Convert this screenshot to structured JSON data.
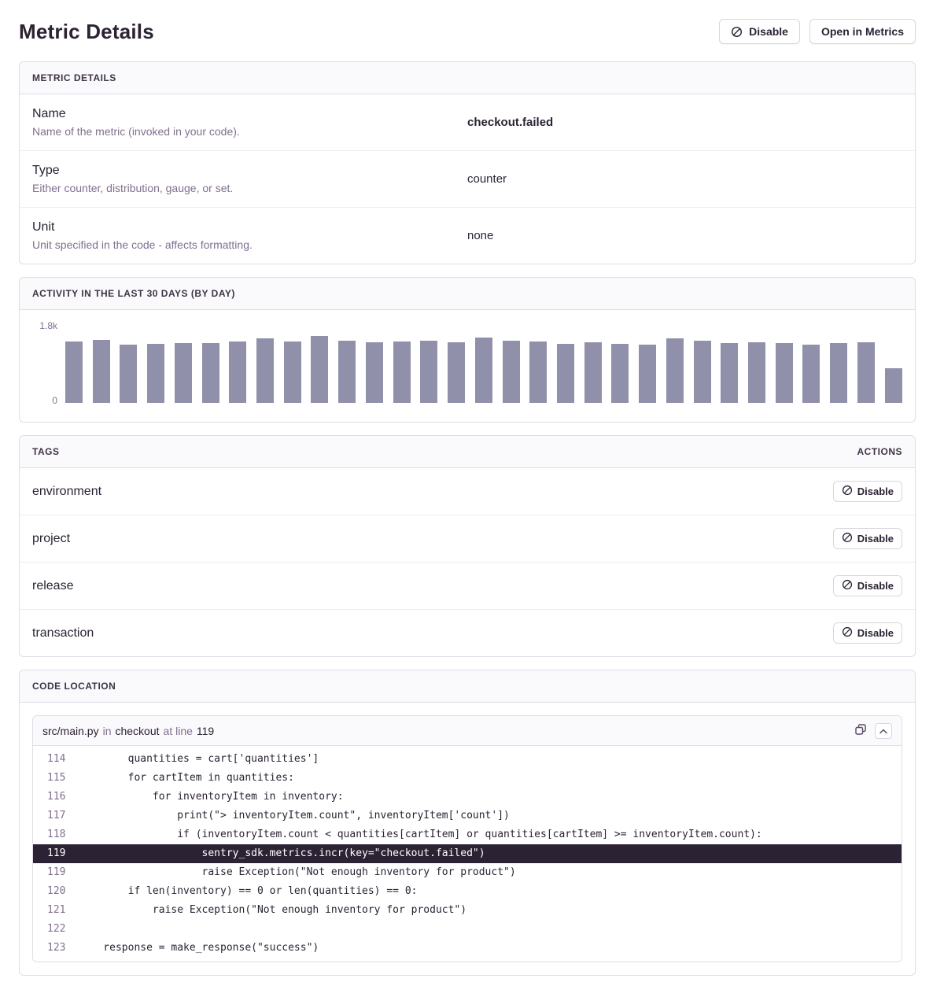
{
  "page": {
    "title": "Metric Details"
  },
  "header_actions": {
    "disable_label": "Disable",
    "open_in_metrics_label": "Open in Metrics"
  },
  "metric_details": {
    "section_title": "METRIC DETAILS",
    "rows": [
      {
        "label": "Name",
        "description": "Name of the metric (invoked in your code).",
        "value": "checkout.failed",
        "value_bold": true
      },
      {
        "label": "Type",
        "description": "Either counter, distribution, gauge, or set.",
        "value": "counter",
        "value_bold": false
      },
      {
        "label": "Unit",
        "description": "Unit specified in the code - affects formatting.",
        "value": "none",
        "value_bold": false
      }
    ]
  },
  "activity": {
    "section_title": "ACTIVITY IN THE LAST 30 DAYS (BY DAY)",
    "y_max_label": "1.8k",
    "y_min_label": "0"
  },
  "chart_data": {
    "type": "bar",
    "title": "Activity in the last 30 days (by day)",
    "ylim": [
      0,
      1800
    ],
    "ytick_labels": [
      "0",
      "1.8k"
    ],
    "grid": false,
    "legend": false,
    "bar_color": "#9190aa",
    "values": [
      1520,
      1560,
      1450,
      1470,
      1480,
      1490,
      1520,
      1600,
      1530,
      1660,
      1550,
      1500,
      1530,
      1550,
      1510,
      1620,
      1540,
      1520,
      1470,
      1510,
      1460,
      1440,
      1600,
      1540,
      1480,
      1500,
      1490,
      1450,
      1480,
      1500,
      870
    ]
  },
  "tags": {
    "section_title": "TAGS",
    "actions_title": "ACTIONS",
    "disable_label": "Disable",
    "items": [
      {
        "name": "environment"
      },
      {
        "name": "project"
      },
      {
        "name": "release"
      },
      {
        "name": "transaction"
      }
    ]
  },
  "code_location": {
    "section_title": "CODE LOCATION",
    "file_path": "src/main.py",
    "in_word": "in",
    "function_name": "checkout",
    "at_line_words": "at line",
    "line_number": "119",
    "lines": [
      {
        "num": "114",
        "code": "        quantities = cart['quantities']",
        "highlight": false
      },
      {
        "num": "115",
        "code": "        for cartItem in quantities:",
        "highlight": false
      },
      {
        "num": "116",
        "code": "            for inventoryItem in inventory:",
        "highlight": false
      },
      {
        "num": "117",
        "code": "                print(\"> inventoryItem.count\", inventoryItem['count'])",
        "highlight": false
      },
      {
        "num": "118",
        "code": "                if (inventoryItem.count < quantities[cartItem] or quantities[cartItem] >= inventoryItem.count):",
        "highlight": false
      },
      {
        "num": "119",
        "code": "                    sentry_sdk.metrics.incr(key=\"checkout.failed\")",
        "highlight": true
      },
      {
        "num": "119",
        "code": "                    raise Exception(\"Not enough inventory for product\")",
        "highlight": false
      },
      {
        "num": "120",
        "code": "        if len(inventory) == 0 or len(quantities) == 0:",
        "highlight": false
      },
      {
        "num": "121",
        "code": "            raise Exception(\"Not enough inventory for product\")",
        "highlight": false
      },
      {
        "num": "122",
        "code": "",
        "highlight": false
      },
      {
        "num": "123",
        "code": "    response = make_response(\"success\")",
        "highlight": false
      }
    ]
  },
  "colors": {
    "text_dark": "#2b2233",
    "text_gray": "#80708f",
    "border": "#e0dce5",
    "panel_header_bg": "#faf9fb",
    "bar": "#9190aa",
    "code_highlight_bg": "#2b2233"
  }
}
